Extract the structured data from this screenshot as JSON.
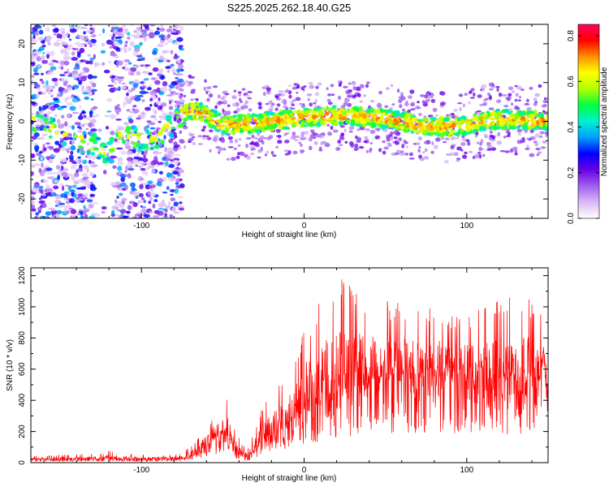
{
  "title": "S225.2025.262.18.40.G25",
  "chart_data": [
    {
      "type": "heatmap",
      "title": "S225.2025.262.18.40.G25",
      "xlabel": "Height of straight line (km)",
      "ylabel": "Frequency (Hz)",
      "xlim": [
        -168,
        150
      ],
      "ylim": [
        -25,
        25
      ],
      "xticks": [
        -100,
        0,
        100
      ],
      "yticks": [
        -20,
        -10,
        0,
        10,
        20
      ],
      "colorbar": {
        "label": "Normalized spectral amplitude",
        "range": [
          0.0,
          0.85
        ],
        "ticks": [
          "0.0",
          "0.2",
          "0.4",
          "0.6",
          "0.8"
        ],
        "colors": [
          "#ffffff",
          "#d9b8f5",
          "#a060f0",
          "#6a00e6",
          "#0000ff",
          "#00a0ff",
          "#00f0d0",
          "#00ff40",
          "#b0ff00",
          "#ffff00",
          "#ff9000",
          "#ff0000",
          "#ff0060"
        ]
      },
      "ridge_center_freq_hz": [
        {
          "x": -168,
          "y": 0
        },
        {
          "x": -130,
          "y": -6
        },
        {
          "x": -122,
          "y": -8
        },
        {
          "x": -112,
          "y": -4
        },
        {
          "x": -95,
          "y": -5
        },
        {
          "x": -82,
          "y": -1
        },
        {
          "x": -70,
          "y": 3
        },
        {
          "x": -62,
          "y": 2
        },
        {
          "x": -50,
          "y": -1
        },
        {
          "x": -30,
          "y": -0.5
        },
        {
          "x": -10,
          "y": 0.5
        },
        {
          "x": 0,
          "y": 1
        },
        {
          "x": 20,
          "y": 1.5
        },
        {
          "x": 40,
          "y": 1
        },
        {
          "x": 55,
          "y": 0.5
        },
        {
          "x": 70,
          "y": -1
        },
        {
          "x": 90,
          "y": -1.5
        },
        {
          "x": 100,
          "y": -1
        },
        {
          "x": 115,
          "y": 0.5
        },
        {
          "x": 130,
          "y": 0.5
        },
        {
          "x": 150,
          "y": 0
        }
      ],
      "noise_region_x": [
        -168,
        -75
      ],
      "noise_gap_x": [
        -128,
        -118
      ]
    },
    {
      "type": "line",
      "xlabel": "Height of straight line (km)",
      "ylabel": "SNR (10 * v/v)",
      "xlim": [
        -168,
        150
      ],
      "ylim": [
        0,
        1250
      ],
      "xticks": [
        -100,
        0,
        100
      ],
      "yticks": [
        0,
        200,
        400,
        600,
        800,
        1000,
        1200
      ],
      "series": [
        {
          "name": "SNR",
          "color": "#ff0000",
          "envelope": [
            {
              "x": -168,
              "base": 18,
              "peak": 45
            },
            {
              "x": -130,
              "base": 22,
              "peak": 60
            },
            {
              "x": -125,
              "base": 25,
              "peak": 85
            },
            {
              "x": -100,
              "base": 20,
              "peak": 50
            },
            {
              "x": -75,
              "base": 25,
              "peak": 55
            },
            {
              "x": -65,
              "base": 60,
              "peak": 160
            },
            {
              "x": -55,
              "base": 140,
              "peak": 330
            },
            {
              "x": -48,
              "base": 200,
              "peak": 440
            },
            {
              "x": -42,
              "base": 80,
              "peak": 200
            },
            {
              "x": -35,
              "base": 30,
              "peak": 80
            },
            {
              "x": -25,
              "base": 130,
              "peak": 380
            },
            {
              "x": -10,
              "base": 230,
              "peak": 560
            },
            {
              "x": 0,
              "base": 330,
              "peak": 880
            },
            {
              "x": 20,
              "base": 450,
              "peak": 1200
            },
            {
              "x": 40,
              "base": 500,
              "peak": 1080
            },
            {
              "x": 60,
              "base": 520,
              "peak": 1020
            },
            {
              "x": 80,
              "base": 540,
              "peak": 1000
            },
            {
              "x": 100,
              "base": 530,
              "peak": 940
            },
            {
              "x": 120,
              "base": 520,
              "peak": 1050
            },
            {
              "x": 135,
              "base": 510,
              "peak": 1100
            },
            {
              "x": 150,
              "base": 480,
              "peak": 950
            }
          ]
        }
      ]
    }
  ]
}
